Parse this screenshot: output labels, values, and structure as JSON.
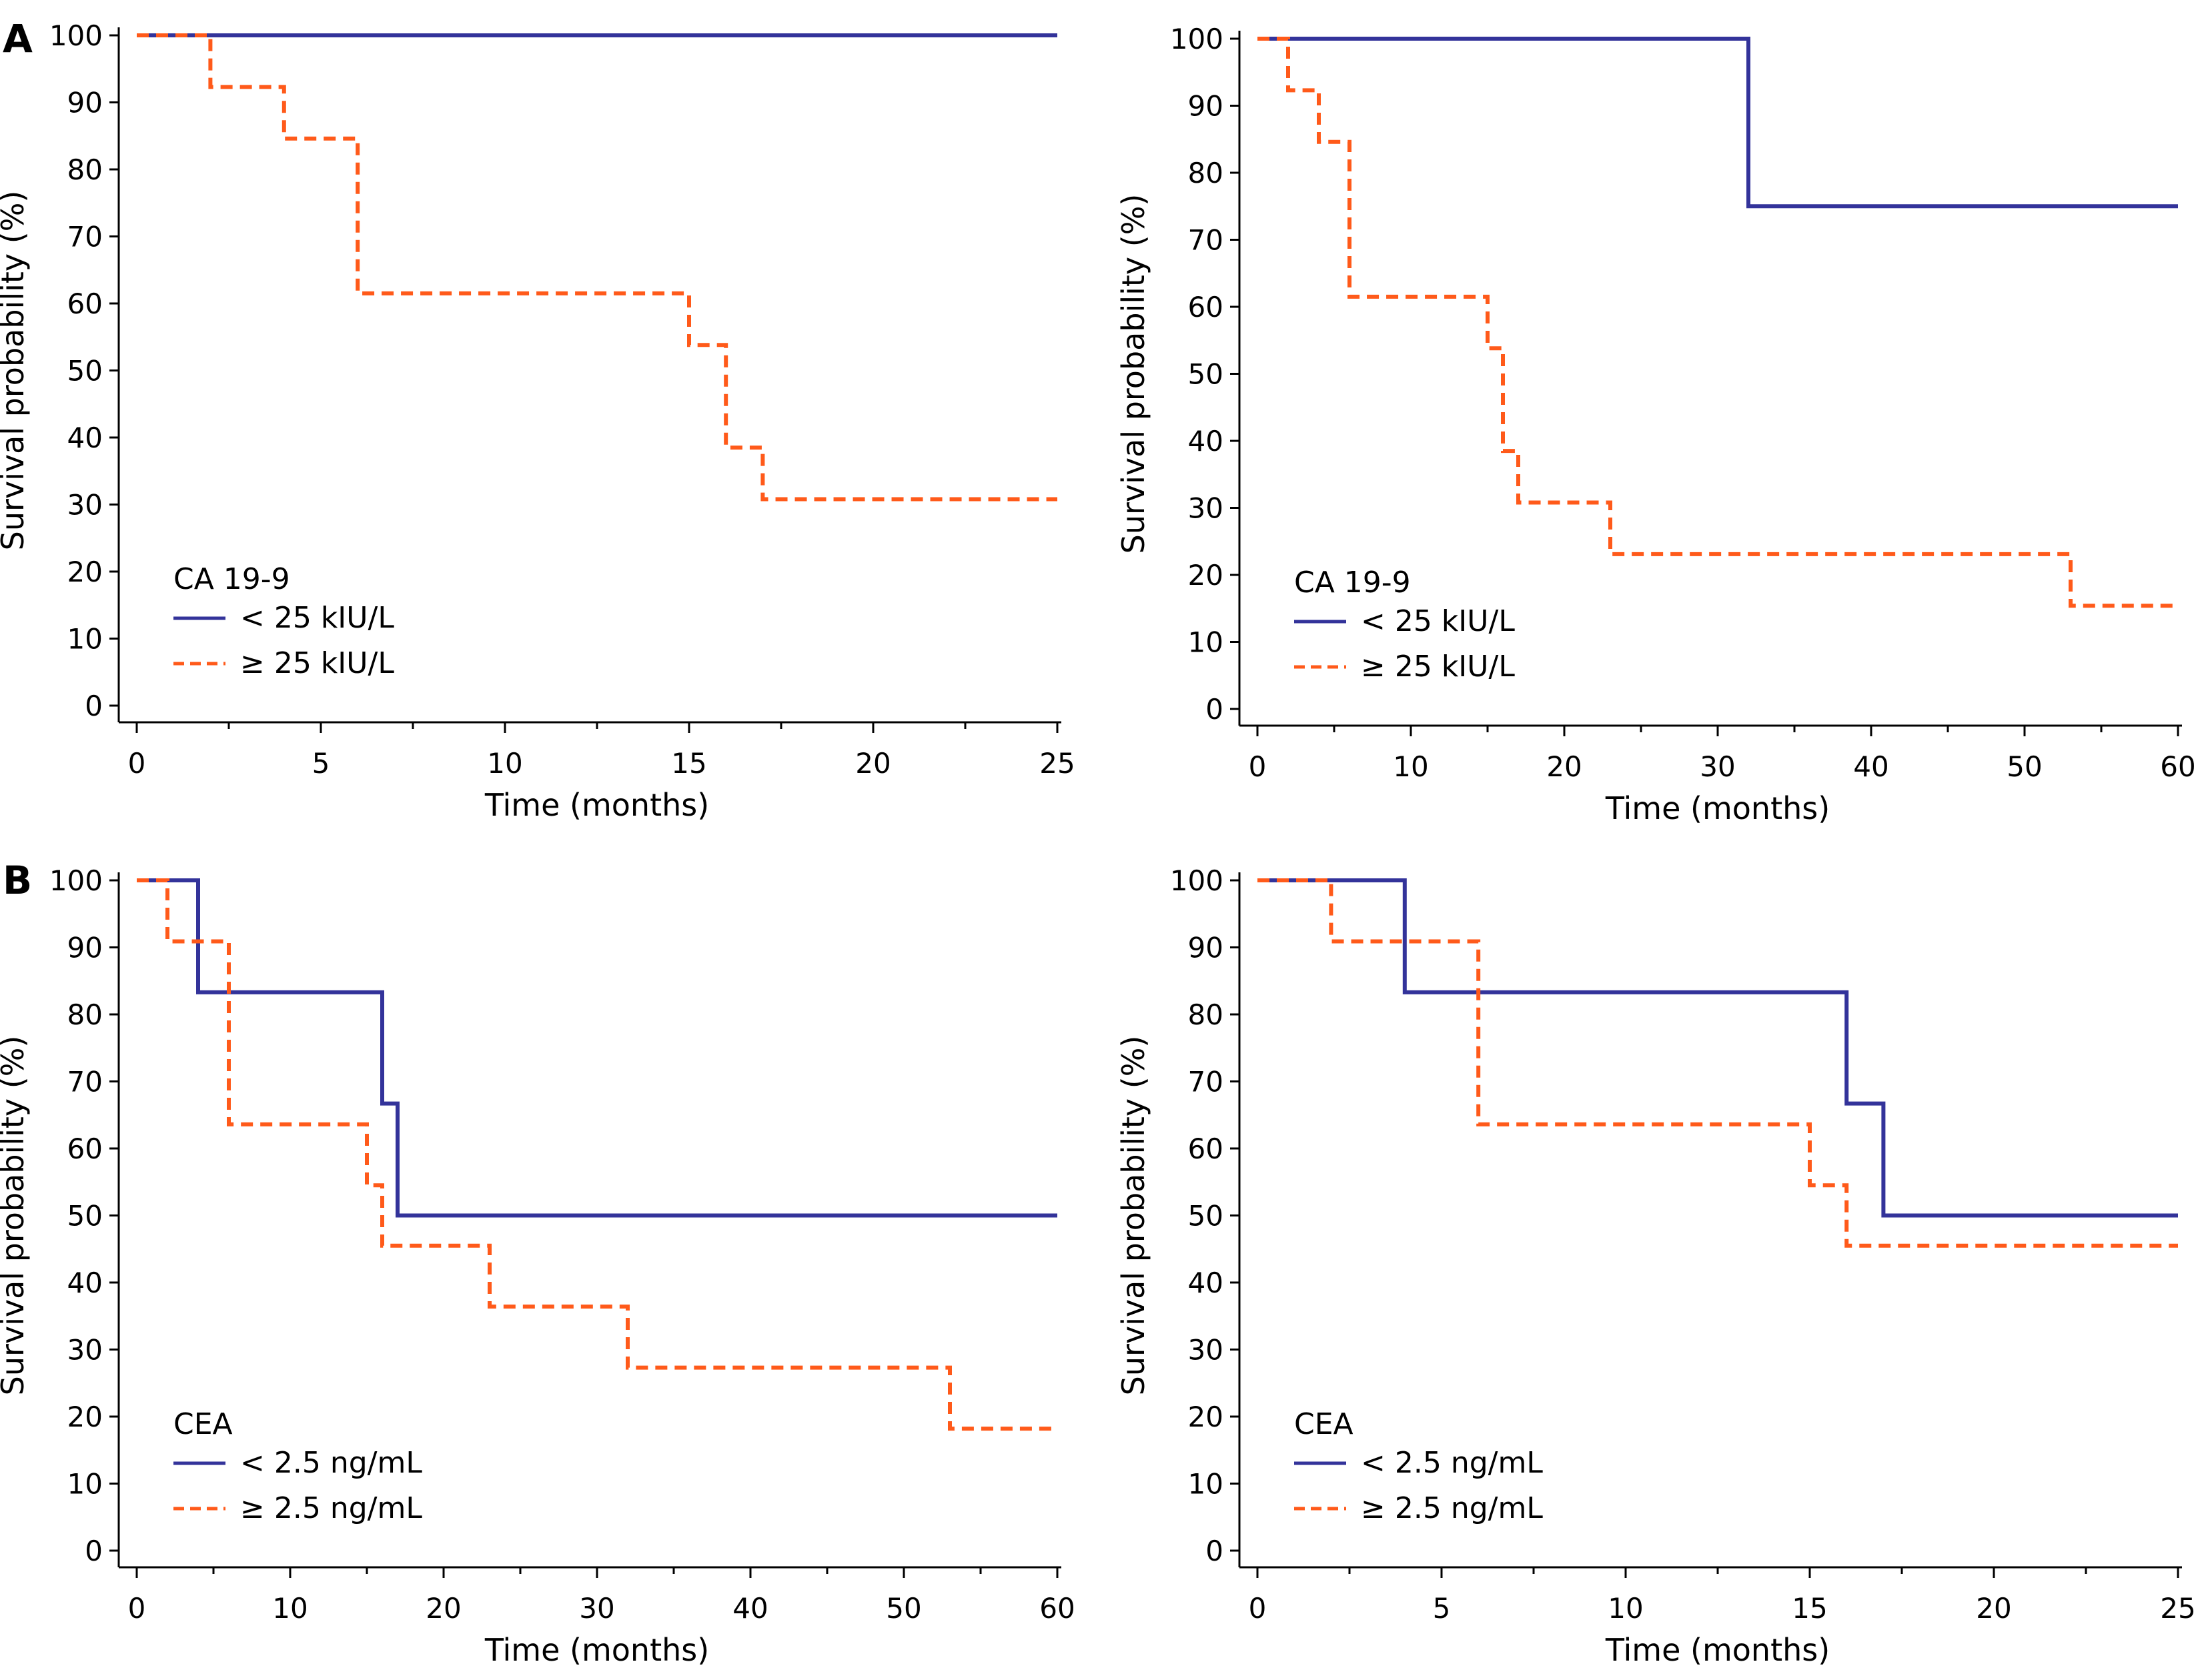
{
  "figure": {
    "panel_letters": [
      "A",
      "B"
    ],
    "colors": {
      "low_group": "#33339a",
      "high_group": "#ff5a1a",
      "axis": "#000000"
    }
  },
  "chart_data": [
    {
      "type": "line",
      "panel": "A",
      "xlabel": "Time (months)",
      "ylabel": "Survival probability (%)",
      "xlim": [
        0,
        25
      ],
      "ylim": [
        0,
        100
      ],
      "xticks": [
        0,
        5,
        10,
        15,
        20,
        25
      ],
      "yticks": [
        0,
        10,
        20,
        30,
        40,
        50,
        60,
        70,
        80,
        90,
        100
      ],
      "grid": false,
      "legend_title": "CA 19-9",
      "legend_position": "bottom-left",
      "series": [
        {
          "name": "< 25 kIU/L",
          "style": "solid",
          "step": true,
          "x": [
            0,
            25
          ],
          "y": [
            100,
            100
          ]
        },
        {
          "name": "≥ 25 kIU/L",
          "style": "dashed",
          "step": true,
          "x": [
            0,
            2,
            4,
            6,
            15,
            16,
            17,
            25
          ],
          "y": [
            100,
            92.3,
            84.6,
            61.5,
            53.8,
            38.5,
            30.8,
            30.8
          ]
        }
      ]
    },
    {
      "type": "line",
      "panel": "A",
      "xlabel": "Time (months)",
      "ylabel": "Survival probability (%)",
      "xlim": [
        0,
        60
      ],
      "ylim": [
        0,
        100
      ],
      "xticks": [
        0,
        10,
        20,
        30,
        40,
        50,
        60
      ],
      "yticks": [
        0,
        10,
        20,
        30,
        40,
        50,
        60,
        70,
        80,
        90,
        100
      ],
      "grid": false,
      "legend_title": "CA 19-9",
      "legend_position": "bottom-left",
      "series": [
        {
          "name": "< 25 kIU/L",
          "style": "solid",
          "step": true,
          "x": [
            0,
            32,
            60
          ],
          "y": [
            100,
            75,
            75
          ]
        },
        {
          "name": "≥ 25 kIU/L",
          "style": "dashed",
          "step": true,
          "x": [
            0,
            2,
            4,
            6,
            15,
            16,
            17,
            23,
            53,
            60
          ],
          "y": [
            100,
            92.3,
            84.6,
            61.5,
            53.8,
            38.5,
            30.8,
            23.1,
            15.4,
            15.4
          ]
        }
      ]
    },
    {
      "type": "line",
      "panel": "B",
      "xlabel": "Time (months)",
      "ylabel": "Survival probability (%)",
      "xlim": [
        0,
        60
      ],
      "ylim": [
        0,
        100
      ],
      "xticks": [
        0,
        10,
        20,
        30,
        40,
        50,
        60
      ],
      "yticks": [
        0,
        10,
        20,
        30,
        40,
        50,
        60,
        70,
        80,
        90,
        100
      ],
      "grid": false,
      "legend_title": "CEA",
      "legend_position": "bottom-left",
      "series": [
        {
          "name": "< 2.5 ng/mL",
          "style": "solid",
          "step": true,
          "x": [
            0,
            4,
            16,
            17,
            60
          ],
          "y": [
            100,
            83.3,
            66.7,
            50,
            50
          ]
        },
        {
          "name": "≥ 2.5 ng/mL",
          "style": "dashed",
          "step": true,
          "x": [
            0,
            2,
            6,
            15,
            16,
            23,
            32,
            53,
            60
          ],
          "y": [
            100,
            90.9,
            63.6,
            54.5,
            45.5,
            36.4,
            27.3,
            18.2,
            18.2
          ]
        }
      ]
    },
    {
      "type": "line",
      "panel": "B",
      "xlabel": "Time (months)",
      "ylabel": "Survival probability (%)",
      "xlim": [
        0,
        25
      ],
      "ylim": [
        0,
        100
      ],
      "xticks": [
        0,
        5,
        10,
        15,
        20,
        25
      ],
      "yticks": [
        0,
        10,
        20,
        30,
        40,
        50,
        60,
        70,
        80,
        90,
        100
      ],
      "grid": false,
      "legend_title": "CEA",
      "legend_position": "bottom-left",
      "series": [
        {
          "name": "< 2.5 ng/mL",
          "style": "solid",
          "step": true,
          "x": [
            0,
            4,
            16,
            17,
            25
          ],
          "y": [
            100,
            83.3,
            66.7,
            50,
            50
          ]
        },
        {
          "name": "≥ 2.5 ng/mL",
          "style": "dashed",
          "step": true,
          "x": [
            0,
            2,
            6,
            15,
            16,
            25
          ],
          "y": [
            100,
            90.9,
            63.6,
            54.5,
            45.5,
            45.5
          ]
        }
      ]
    }
  ]
}
